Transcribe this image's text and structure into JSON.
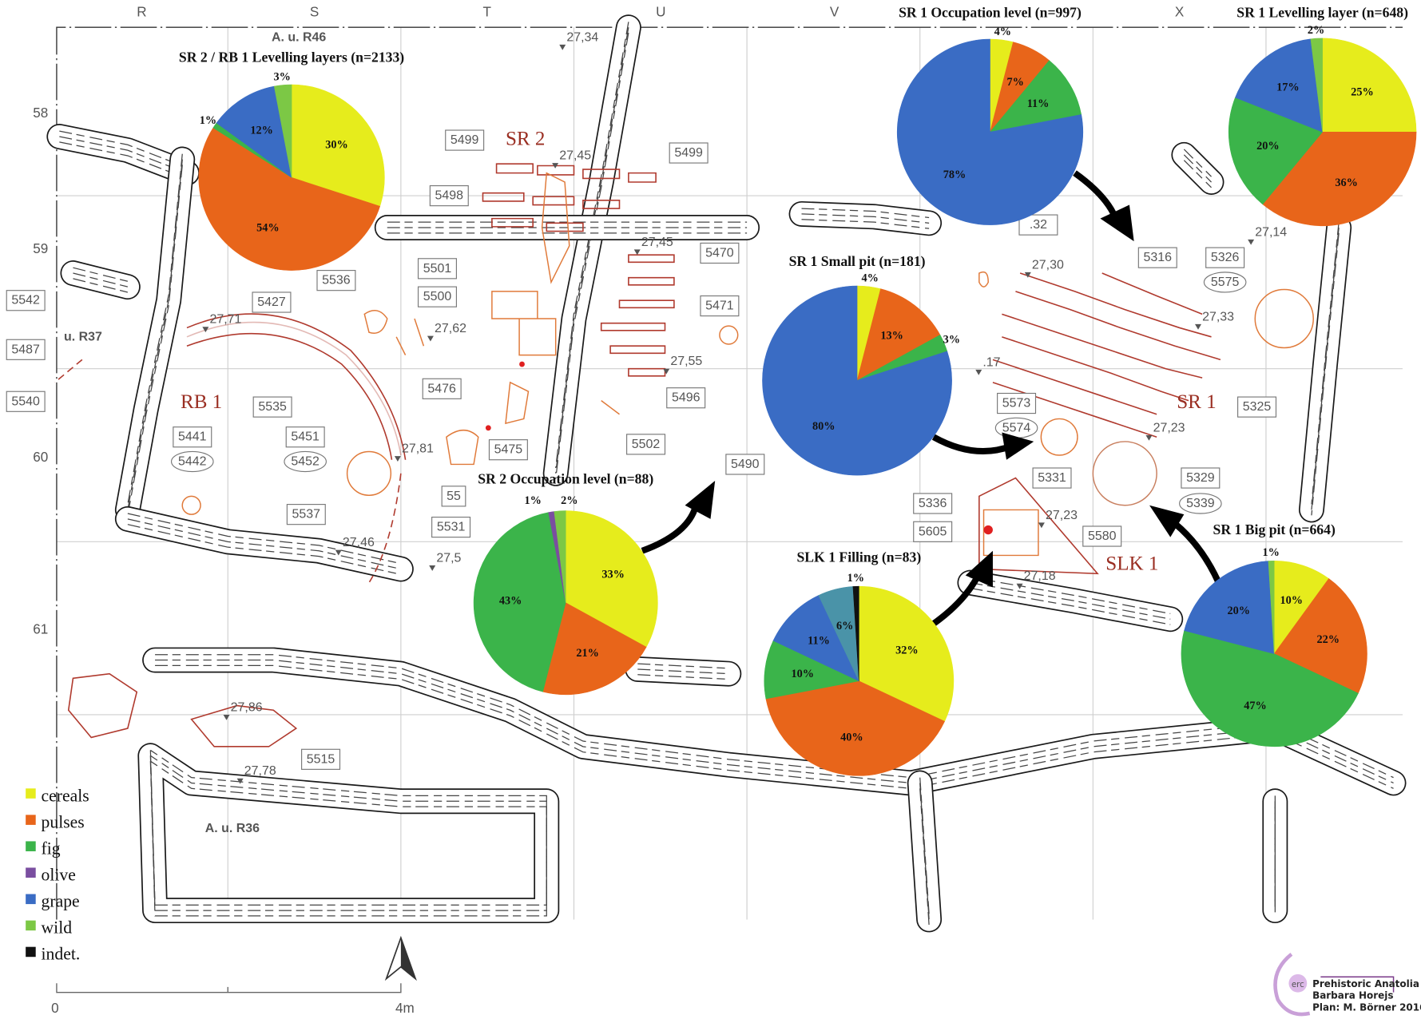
{
  "map": {
    "columns": [
      "R",
      "S",
      "T",
      "U",
      "V",
      "X"
    ],
    "rows": [
      "58",
      "59",
      "60",
      "61"
    ],
    "areas": [
      "A. u. R46",
      "u. R37",
      "A. u. R36"
    ],
    "structures": [
      "SR 2",
      "RB 1",
      "SR 1",
      "SLK 1"
    ],
    "feature_boxes": [
      "5499",
      "5499",
      "5498",
      "5470",
      "5501",
      "5500",
      "5471",
      "5536",
      "5542",
      "5427",
      "5487",
      "5540",
      "5535",
      "5441",
      "5451",
      "5537",
      "5476",
      "5475",
      "5496",
      "5502",
      "5490",
      "5531",
      "5316",
      "5326",
      "5325",
      "5573",
      "5331",
      "5329",
      "5336",
      "5605",
      "5580",
      "5515",
      "55",
      ".32"
    ],
    "feature_ovals": [
      "5442",
      "5452",
      "5575",
      "5574",
      "5339"
    ],
    "elevations": [
      "27,34",
      "27,45",
      "27,45",
      "27,71",
      "27,62",
      "27,55",
      "27,81",
      "27,46",
      "27,5",
      "27,30",
      "27,33",
      "27,14",
      "27,23",
      "27,23",
      "27,18",
      "27,86",
      "27,78",
      ".17"
    ],
    "scale": {
      "start": "0",
      "end": "4m"
    },
    "north_arrow_icon": "north-arrow-icon"
  },
  "legend": {
    "items": [
      {
        "label": "cereals",
        "color": "#e6ec1c"
      },
      {
        "label": "pulses",
        "color": "#e8651a"
      },
      {
        "label": "fig",
        "color": "#3bb44a"
      },
      {
        "label": "olive",
        "color": "#7a4ea0"
      },
      {
        "label": "grape",
        "color": "#3a6cc4"
      },
      {
        "label": "wild",
        "color": "#7cc845"
      },
      {
        "label": "indet.",
        "color": "#111111"
      }
    ]
  },
  "credit": {
    "logo_text": "erc",
    "line1": "Prehistoric Anatolia",
    "line2": "Barbara Horejs",
    "line3": "Plan: M. Börner 2016"
  },
  "chart_data": [
    {
      "type": "pie",
      "title": "SR 2 / RB 1 Levelling layers (n=2133)",
      "slices": [
        {
          "category": "cereals",
          "value": 30
        },
        {
          "category": "pulses",
          "value": 54
        },
        {
          "category": "fig",
          "value": 1
        },
        {
          "category": "grape",
          "value": 12
        },
        {
          "category": "wild",
          "value": 3
        }
      ]
    },
    {
      "type": "pie",
      "title": "SR 1 Occupation level (n=997)",
      "slices": [
        {
          "category": "cereals",
          "value": 4
        },
        {
          "category": "pulses",
          "value": 7
        },
        {
          "category": "fig",
          "value": 11
        },
        {
          "category": "grape",
          "value": 78
        }
      ]
    },
    {
      "type": "pie",
      "title": "SR 1 Levelling layer (n=648)",
      "slices": [
        {
          "category": "cereals",
          "value": 25
        },
        {
          "category": "pulses",
          "value": 36
        },
        {
          "category": "fig",
          "value": 20
        },
        {
          "category": "grape",
          "value": 17
        },
        {
          "category": "wild",
          "value": 2
        }
      ]
    },
    {
      "type": "pie",
      "title": "SR 1 Small pit (n=181)",
      "slices": [
        {
          "category": "cereals",
          "value": 4
        },
        {
          "category": "pulses",
          "value": 13
        },
        {
          "category": "fig",
          "value": 3
        },
        {
          "category": "grape",
          "value": 80
        }
      ]
    },
    {
      "type": "pie",
      "title": "SR 2 Occupation level (n=88)",
      "slices": [
        {
          "category": "cereals",
          "value": 33
        },
        {
          "category": "pulses",
          "value": 21
        },
        {
          "category": "fig",
          "value": 43
        },
        {
          "category": "olive",
          "value": 1
        },
        {
          "category": "wild",
          "value": 2
        }
      ]
    },
    {
      "type": "pie",
      "title": "SLK 1 Filling (n=83)",
      "slices": [
        {
          "category": "cereals",
          "value": 32
        },
        {
          "category": "pulses",
          "value": 40
        },
        {
          "category": "fig",
          "value": 10
        },
        {
          "category": "grape",
          "value": 11
        },
        {
          "category": null,
          "color": "#4a93a8",
          "value": 6
        },
        {
          "category": "indet.",
          "value": 1
        }
      ]
    },
    {
      "type": "pie",
      "title": "SR 1 Big pit (n=664)",
      "slices": [
        {
          "category": "cereals",
          "value": 10
        },
        {
          "category": "pulses",
          "value": 22
        },
        {
          "category": "fig",
          "value": 47
        },
        {
          "category": "grape",
          "value": 20
        },
        {
          "category": "wild",
          "value": 1
        }
      ]
    }
  ]
}
